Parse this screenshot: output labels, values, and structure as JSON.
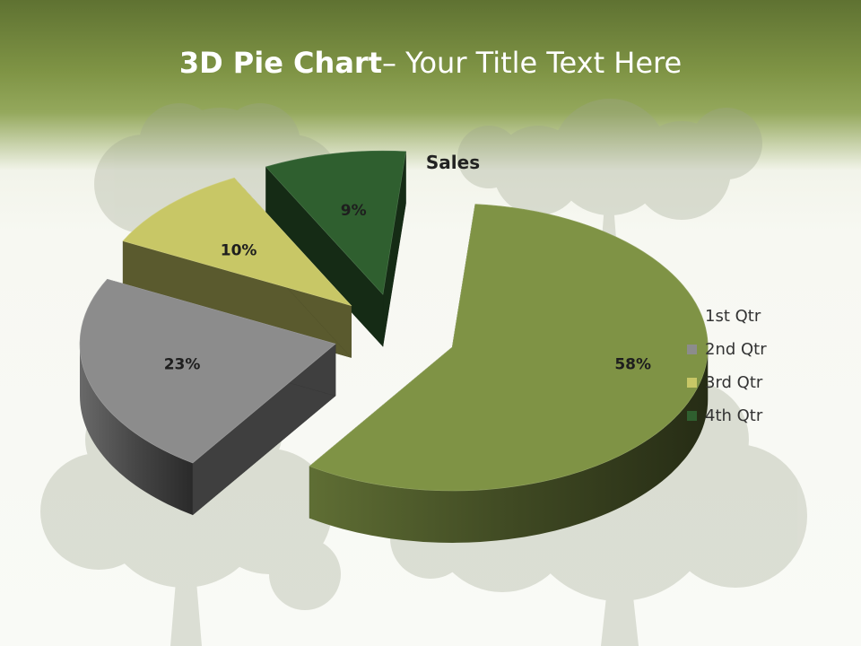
{
  "slide": {
    "title_bold": "3D Pie Chart",
    "title_rest": "– Your Title Text Here"
  },
  "chart_data": {
    "type": "pie",
    "title": "Sales",
    "categories": [
      "1st Qtr",
      "2nd Qtr",
      "3rd Qtr",
      "4th Qtr"
    ],
    "values": [
      58,
      23,
      10,
      9
    ],
    "labels": [
      "58%",
      "23%",
      "10%",
      "9%"
    ],
    "colors": [
      "#7f9345",
      "#8c8c8c",
      "#c8c766",
      "#2f5f2f"
    ],
    "exploded": true,
    "three_d": true,
    "legend_position": "right"
  }
}
